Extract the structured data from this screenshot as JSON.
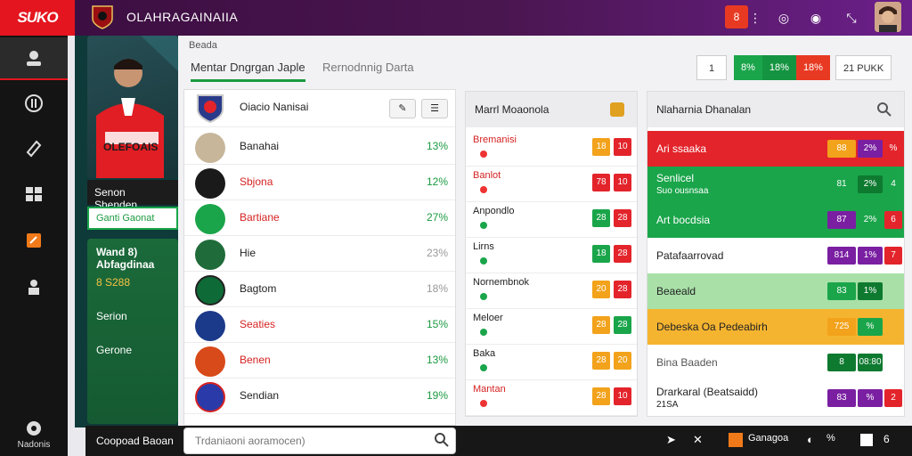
{
  "header": {
    "logo": "SUKO",
    "title": "OLAHRAGAINAIIA",
    "notif": "8",
    "icons": [
      "more-icon",
      "camera-icon",
      "globe-icon",
      "expand-icon"
    ]
  },
  "sidebar": {
    "items": [
      "user-icon",
      "chart-icon",
      "tag-icon",
      "grid-icon",
      "sticker-icon",
      "team-icon"
    ],
    "footer": "Nadonis"
  },
  "player": {
    "caption": "OLEFOAIS",
    "name": "Senon Shenden",
    "tag": "Ganti Gaonat",
    "panel_title": "Wand 8) Abfagdinaa",
    "rows": [
      "8 S288",
      "Serion",
      "Gerone"
    ]
  },
  "breadcrumb": "Beada",
  "tabs": [
    "Mentar Dngrgan Japle",
    "Rernodnnig Darta"
  ],
  "header_pills": [
    {
      "label": "1",
      "color": "#ffffff",
      "text": "#333"
    },
    {
      "label": "8%",
      "color": "#1aa54a",
      "text": "#fff"
    },
    {
      "label": "18%",
      "color": "#149440",
      "text": "#fff"
    },
    {
      "label": "18%",
      "color": "#e83a22",
      "text": "#fff"
    },
    {
      "label": "21 PUKK",
      "color": "#ffffff",
      "text": "#333"
    }
  ],
  "list": {
    "title": "Oiacio Nanisai",
    "rows": [
      {
        "name": "Banahai",
        "pct": "13%",
        "color": "#222"
      },
      {
        "name": "Sbjona",
        "pct": "12%",
        "color": "#d52222"
      },
      {
        "name": "Bartiane",
        "pct": "27%",
        "color": "#d52222"
      },
      {
        "name": "Hie",
        "pct": "23%",
        "color": "#222"
      },
      {
        "name": "Bagtom",
        "pct": "18%",
        "color": "#222"
      },
      {
        "name": "Seaties",
        "pct": "15%",
        "color": "#d52222"
      },
      {
        "name": "Benen",
        "pct": "13%",
        "color": "#d52222"
      },
      {
        "name": "Sendian",
        "pct": "19%",
        "color": "#222"
      }
    ]
  },
  "mid": {
    "title": "Marrl Moaonola",
    "rows": [
      {
        "name": "Bremanisi",
        "a": "18",
        "b": "10",
        "ac": "#f2a21b",
        "bc": "#e3242b",
        "red": true
      },
      {
        "name": "Banlot",
        "a": "78",
        "b": "10",
        "ac": "#e3242b",
        "bc": "#e3242b",
        "red": true
      },
      {
        "name": "Anpondlo",
        "a": "28",
        "b": "28",
        "ac": "#1aa54a",
        "bc": "#e3242b",
        "red": false
      },
      {
        "name": "Lirns",
        "a": "18",
        "b": "28",
        "ac": "#1aa54a",
        "bc": "#e3242b",
        "red": false
      },
      {
        "name": "Nornembnok",
        "a": "20",
        "b": "28",
        "ac": "#f2a21b",
        "bc": "#e3242b",
        "red": false
      },
      {
        "name": "Meloer",
        "a": "28",
        "b": "28",
        "ac": "#f2a21b",
        "bc": "#1aa54a",
        "red": false
      },
      {
        "name": "Baka",
        "a": "28",
        "b": "20",
        "ac": "#f2a21b",
        "bc": "#f2a21b",
        "red": false
      },
      {
        "name": "Mantan",
        "a": "28",
        "b": "10",
        "ac": "#f2a21b",
        "bc": "#e3242b",
        "red": true
      }
    ]
  },
  "right": {
    "title": "Nlaharnia Dhanalan",
    "rows": [
      {
        "name": "Ari ssaaka",
        "sub": "",
        "bg": "#e3242b",
        "fg": "#fff",
        "a": "88",
        "b": "2%",
        "c": "%",
        "ac": "#f2a21b",
        "bc": "#7a1fa2",
        "cc": "#e3242b"
      },
      {
        "name": "Senlicel",
        "sub": "Suo ousnsaa",
        "bg": "#1aa54a",
        "fg": "#fff",
        "a": "81",
        "b": "2%",
        "c": "4",
        "ac": "#1aa54a",
        "bc": "#0e7a30",
        "cc": "#1aa54a"
      },
      {
        "name": "Art bocdsia",
        "sub": "",
        "bg": "#1aa54a",
        "fg": "#fff",
        "a": "87",
        "b": "2%",
        "c": "6",
        "ac": "#7a1fa2",
        "bc": "#1aa54a",
        "cc": "#e3242b"
      },
      {
        "name": "Patafaarrovad",
        "sub": "",
        "bg": "#ffffff",
        "fg": "#222",
        "a": "814",
        "b": "1%",
        "c": "7",
        "ac": "#7a1fa2",
        "bc": "#7a1fa2",
        "cc": "#e3242b"
      },
      {
        "name": "Beaeald",
        "sub": "",
        "bg": "#a8e0a8",
        "fg": "#222",
        "a": "83",
        "b": "1%",
        "c": "",
        "ac": "#1aa54a",
        "bc": "#0e7a30",
        "cc": "#ffffff"
      },
      {
        "name": "Debeska Oa Pedeabirh",
        "sub": "",
        "bg": "#f5b430",
        "fg": "#222",
        "a": "725",
        "b": "%",
        "c": "",
        "ac": "#f2a21b",
        "bc": "#1aa54a",
        "cc": "#ffffff"
      },
      {
        "name": "Bina Baaden",
        "sub": "",
        "bg": "#ffffff",
        "fg": "#555",
        "a": "8",
        "b": "08:80",
        "c": "",
        "ac": "#0e7a30",
        "bc": "#0e7a30",
        "cc": "#ffffff"
      },
      {
        "name": "Drarkaral (Beatsaidd)",
        "sub": "21SA",
        "bg": "#ffffff",
        "fg": "#222",
        "a": "83",
        "b": "%",
        "c": "2",
        "ac": "#7a1fa2",
        "bc": "#7a1fa2",
        "cc": "#e3242b"
      }
    ]
  },
  "bottom": {
    "label": "Coopoad Baoan",
    "search_placeholder": "Trdaniaoni aoramocen)",
    "right": [
      "Ganagoa",
      "%",
      "6"
    ]
  },
  "colors": {
    "accent": "#1aa54a",
    "danger": "#e3242b",
    "brand": "#e4151f"
  }
}
